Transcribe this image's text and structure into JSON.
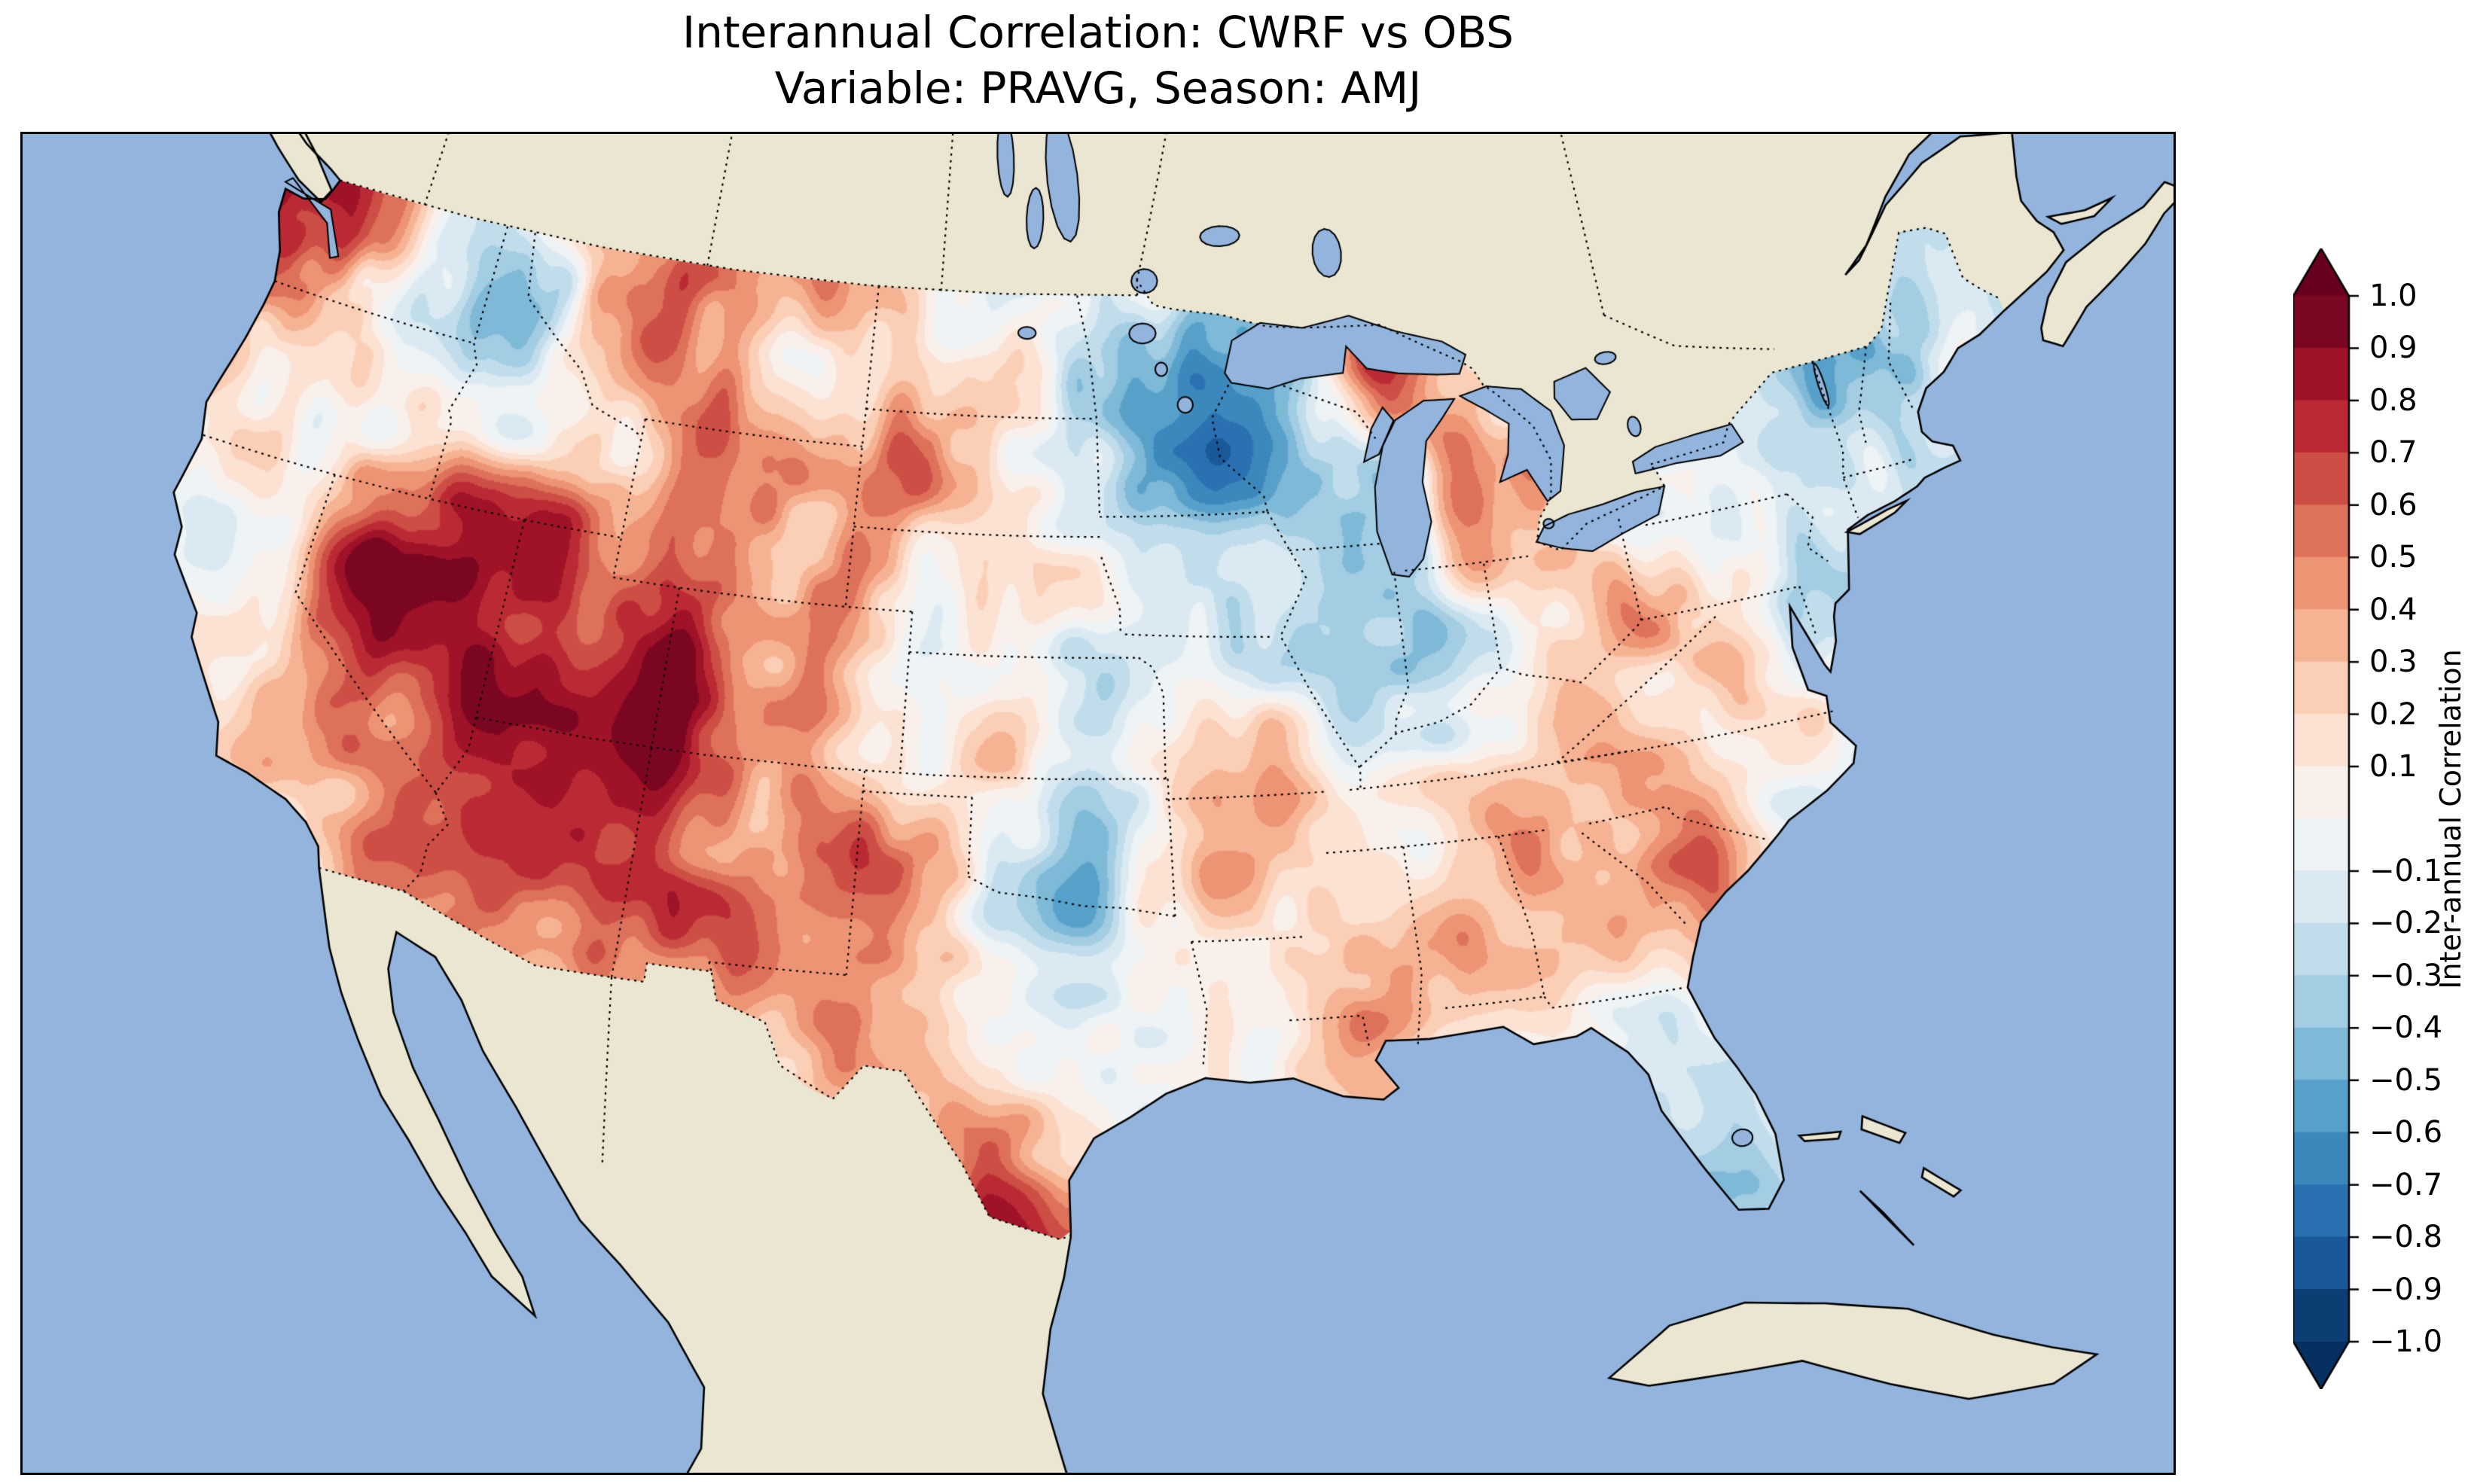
{
  "title": {
    "line1": "Interannual Correlation: CWRF vs OBS",
    "line2": "Variable: PRAVG, Season: AMJ"
  },
  "colorbar": {
    "label": "Inter-annual Correlation",
    "tick_values": [
      1.0,
      0.9,
      0.8,
      0.7,
      0.6,
      0.5,
      0.4,
      0.3,
      0.2,
      0.1,
      -0.1,
      -0.2,
      -0.3,
      -0.4,
      -0.5,
      -0.6,
      -0.7,
      -0.8,
      -0.9,
      -1.0
    ],
    "tick_labels": [
      "1.0",
      "0.9",
      "0.8",
      "0.7",
      "0.6",
      "0.5",
      "0.4",
      "0.3",
      "0.2",
      "0.1",
      "−0.1",
      "−0.2",
      "−0.3",
      "−0.4",
      "−0.5",
      "−0.6",
      "−0.7",
      "−0.8",
      "−0.9",
      "−1.0"
    ],
    "min": -1.0,
    "max": 1.0,
    "step": 0.1,
    "extend": "both"
  },
  "colormap": {
    "name": "RdBu_r",
    "anchors": [
      "#053061",
      "#2166ac",
      "#4393c3",
      "#92c5de",
      "#d1e5f0",
      "#f7f7f7",
      "#fddbc7",
      "#f4a582",
      "#d6604d",
      "#b2182b",
      "#67001f"
    ]
  },
  "map_style": {
    "ocean": "#92b4dd",
    "land": "#eae6d1",
    "lake": "#92b4dd",
    "coastline": "#000000",
    "state_border_style": "dotted"
  },
  "chart_data": {
    "type": "heatmap",
    "title": "Interannual Correlation: CWRF vs OBS",
    "subtitle": "Variable: PRAVG, Season: AMJ",
    "variable": "PRAVG",
    "season": "AMJ",
    "comparison": [
      "CWRF",
      "OBS"
    ],
    "region": "Continental United States",
    "colorbar_label": "Inter-annual Correlation",
    "value_range": [
      -1,
      1
    ],
    "contour_interval": 0.1,
    "note": "Correlation field is a coarse estimate read from the filled contours; grid is lon -125..-67 step 2, lat 50..24 step -2.",
    "grid_lon_start": -125,
    "grid_lon_step": 2,
    "grid_nlon": 30,
    "grid_lat_start": 50,
    "grid_lat_step": -2,
    "grid_nlat": 14,
    "values": [
      [
        0.5,
        0.8,
        0.3,
        0.1,
        -0.1,
        0.2,
        0.3,
        0.2,
        0.4,
        0.3,
        0.2,
        0.1,
        0.2,
        0.0,
        -0.2,
        -0.3,
        -0.4,
        -0.2,
        0.3,
        0.5,
        0.2,
        0.0,
        -0.1,
        -0.2,
        -0.2,
        -0.3,
        -0.2,
        -0.3,
        -0.2,
        -0.1
      ],
      [
        0.7,
        0.9,
        0.4,
        0.0,
        -0.2,
        -0.3,
        0.2,
        0.5,
        0.5,
        0.2,
        0.3,
        0.3,
        0.1,
        0.1,
        -0.1,
        -0.4,
        -0.5,
        -0.3,
        0.2,
        0.7,
        0.4,
        0.1,
        -0.2,
        -0.1,
        -0.2,
        -0.3,
        -0.2,
        -0.4,
        -0.3,
        -0.2
      ],
      [
        0.4,
        0.5,
        0.1,
        -0.2,
        -0.3,
        -0.2,
        0.1,
        0.4,
        0.6,
        0.4,
        0.2,
        0.4,
        0.2,
        0.0,
        -0.2,
        -0.5,
        -0.6,
        -0.4,
        0.1,
        0.6,
        0.3,
        -0.1,
        -0.3,
        -0.2,
        -0.1,
        -0.2,
        -0.3,
        -0.2,
        -0.3,
        -0.2
      ],
      [
        0.3,
        0.2,
        -0.1,
        -0.2,
        0.1,
        0.0,
        0.2,
        0.3,
        0.5,
        0.5,
        0.3,
        0.5,
        0.2,
        0.1,
        -0.3,
        -0.4,
        -0.5,
        -0.3,
        -0.2,
        -0.2,
        0.4,
        0.3,
        -0.2,
        -0.1,
        0.0,
        -0.2,
        -0.3,
        -0.2,
        -0.1,
        -0.1
      ],
      [
        0.1,
        0.2,
        0.3,
        0.5,
        0.6,
        0.7,
        0.7,
        0.5,
        0.6,
        0.6,
        0.4,
        0.3,
        0.1,
        0.0,
        -0.1,
        -0.3,
        -0.3,
        -0.2,
        -0.4,
        -0.3,
        0.3,
        0.2,
        0.1,
        0.0,
        -0.1,
        -0.2,
        -0.1,
        -0.3,
        -0.2,
        -0.1
      ],
      [
        0.0,
        0.1,
        0.3,
        0.8,
        0.9,
        0.8,
        0.7,
        0.7,
        0.7,
        0.6,
        0.5,
        0.2,
        0.1,
        0.2,
        0.0,
        -0.2,
        -0.1,
        -0.2,
        -0.3,
        -0.5,
        -0.2,
        0.2,
        0.3,
        0.1,
        0.0,
        -0.2,
        -0.2,
        -0.2,
        -0.1,
        0.0
      ],
      [
        -0.1,
        0.0,
        0.2,
        0.5,
        0.8,
        0.9,
        0.8,
        0.8,
        0.8,
        0.7,
        0.6,
        0.3,
        0.2,
        0.1,
        -0.1,
        -0.2,
        0.1,
        0.2,
        -0.2,
        -0.4,
        0.1,
        0.3,
        0.2,
        0.2,
        -0.1,
        -0.2,
        0.0,
        0.0,
        0.0,
        0.0
      ],
      [
        0.0,
        -0.1,
        0.1,
        0.4,
        0.6,
        0.8,
        0.9,
        0.9,
        0.8,
        0.7,
        0.5,
        0.4,
        0.3,
        0.0,
        -0.4,
        -0.2,
        0.2,
        0.3,
        0.1,
        0.2,
        0.3,
        0.2,
        0.3,
        0.1,
        0.2,
        0.0,
        0.0,
        0.0,
        0.0,
        0.0
      ],
      [
        0.0,
        0.0,
        0.0,
        0.2,
        0.3,
        0.6,
        0.8,
        0.8,
        0.7,
        0.6,
        0.4,
        0.5,
        0.4,
        -0.1,
        -0.5,
        0.1,
        0.3,
        0.2,
        0.2,
        0.3,
        0.4,
        0.2,
        0.4,
        0.3,
        0.1,
        0.0,
        0.0,
        0.0,
        0.0,
        0.0
      ],
      [
        0.0,
        0.0,
        0.0,
        0.0,
        0.1,
        0.4,
        0.6,
        0.5,
        0.4,
        0.4,
        0.5,
        0.7,
        0.5,
        0.2,
        0.0,
        0.2,
        0.3,
        0.4,
        0.4,
        0.3,
        0.5,
        0.4,
        0.2,
        0.1,
        0.0,
        0.0,
        0.0,
        0.0,
        0.0,
        0.0
      ],
      [
        0.0,
        0.0,
        0.0,
        0.0,
        0.0,
        0.1,
        0.2,
        0.2,
        0.2,
        0.2,
        0.3,
        0.6,
        0.4,
        0.3,
        0.2,
        0.1,
        0.2,
        0.3,
        0.2,
        0.2,
        0.3,
        -0.1,
        -0.2,
        0.0,
        0.0,
        0.0,
        0.0,
        0.0,
        0.0,
        0.0
      ],
      [
        0.0,
        0.0,
        0.0,
        0.0,
        0.0,
        0.0,
        0.1,
        0.1,
        0.1,
        0.1,
        0.2,
        0.3,
        0.3,
        0.5,
        0.4,
        0.1,
        0.1,
        0.1,
        0.1,
        0.1,
        0.0,
        -0.3,
        -0.3,
        0.0,
        0.0,
        0.0,
        0.0,
        0.0,
        0.0,
        0.0
      ],
      [
        0.0,
        0.0,
        0.0,
        0.0,
        0.0,
        0.0,
        0.0,
        0.0,
        0.0,
        0.0,
        0.1,
        0.2,
        0.3,
        0.6,
        0.5,
        0.1,
        0.0,
        0.0,
        0.0,
        0.0,
        0.0,
        -0.2,
        -0.2,
        0.0,
        0.0,
        0.0,
        0.0,
        0.0,
        0.0,
        0.0
      ],
      [
        0.0,
        0.0,
        0.0,
        0.0,
        0.0,
        0.0,
        0.0,
        0.0,
        0.0,
        0.0,
        0.0,
        0.0,
        0.0,
        0.0,
        0.0,
        0.0,
        0.0,
        0.0,
        0.0,
        0.0,
        0.0,
        0.0,
        0.0,
        0.0,
        0.0,
        0.0,
        0.0,
        0.0,
        0.0,
        0.0
      ]
    ]
  }
}
